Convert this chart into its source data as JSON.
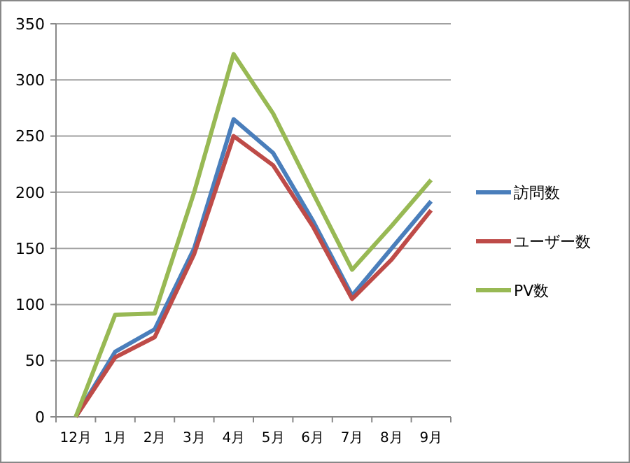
{
  "chart_data": {
    "type": "line",
    "categories": [
      "12月",
      "1月",
      "2月",
      "3月",
      "4月",
      "5月",
      "6月",
      "7月",
      "8月",
      "9月"
    ],
    "series": [
      {
        "name": "訪問数",
        "color": "#4a7ebb",
        "values": [
          0,
          58,
          78,
          150,
          265,
          235,
          175,
          108,
          150,
          192
        ]
      },
      {
        "name": "ユーザー数",
        "color": "#be4b48",
        "values": [
          0,
          53,
          71,
          145,
          250,
          224,
          170,
          105,
          140,
          184
        ]
      },
      {
        "name": "PV数",
        "color": "#98b954",
        "values": [
          0,
          91,
          92,
          200,
          323,
          270,
          200,
          131,
          170,
          211
        ]
      }
    ],
    "ylim": [
      0,
      350
    ],
    "yticks": [
      0,
      50,
      100,
      150,
      200,
      250,
      300,
      350
    ],
    "grid": "y",
    "legend": "right",
    "marker": "none",
    "line_style": "solid"
  }
}
